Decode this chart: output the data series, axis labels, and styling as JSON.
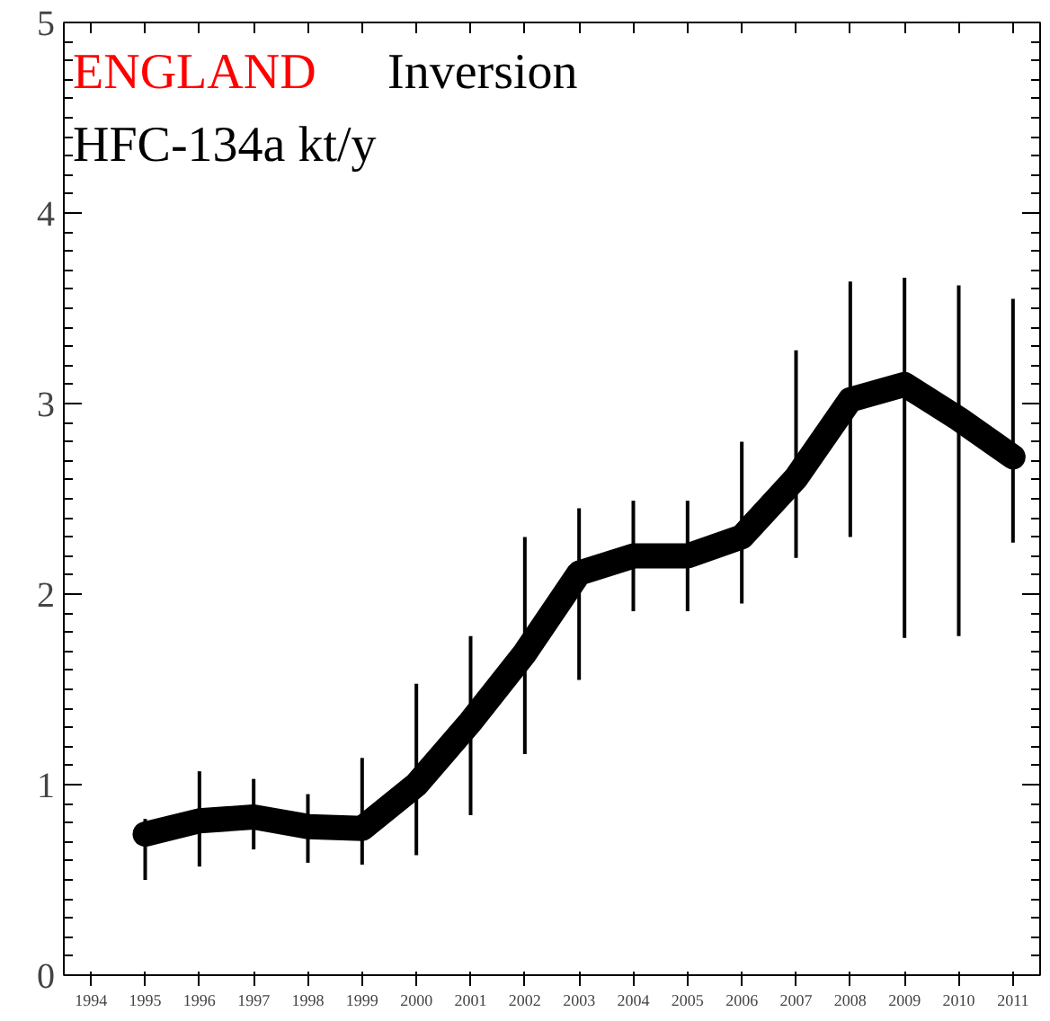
{
  "chart_data": {
    "type": "line",
    "title": "ENGLAND",
    "subtitle": "Inversion",
    "ylabel": "HFC-134a kt/y",
    "x": [
      1995,
      1996,
      1997,
      1998,
      1999,
      2000,
      2001,
      2002,
      2003,
      2004,
      2005,
      2006,
      2007,
      2008,
      2009,
      2010,
      2011
    ],
    "series": [
      {
        "color": "#000000",
        "values": [
          0.74,
          0.81,
          0.83,
          0.78,
          0.77,
          1.0,
          1.33,
          1.69,
          2.11,
          2.2,
          2.2,
          2.3,
          2.61,
          3.02,
          3.1,
          2.92,
          2.72
        ],
        "errors": [
          [
            0.5,
            0.82
          ],
          [
            0.57,
            1.07
          ],
          [
            0.66,
            1.03
          ],
          [
            0.59,
            0.95
          ],
          [
            0.58,
            1.14
          ],
          [
            0.63,
            1.53
          ],
          [
            0.84,
            1.78
          ],
          [
            1.16,
            2.3
          ],
          [
            1.55,
            2.45
          ],
          [
            1.91,
            2.49
          ],
          [
            1.91,
            2.49
          ],
          [
            1.95,
            2.8
          ],
          [
            2.19,
            3.28
          ],
          [
            2.3,
            3.64
          ],
          [
            1.77,
            3.66
          ],
          [
            1.78,
            3.62
          ],
          [
            2.27,
            3.55
          ]
        ]
      }
    ],
    "xlim": [
      1993.5,
      2011.5
    ],
    "xticks": [
      1994,
      1995,
      1996,
      1997,
      1998,
      1999,
      2000,
      2001,
      2002,
      2003,
      2004,
      2005,
      2006,
      2007,
      2008,
      2009,
      2010,
      2011
    ],
    "ylim": [
      0,
      5
    ],
    "yticks": [
      0,
      1,
      2,
      3,
      4,
      5
    ],
    "grid": false,
    "line_style": "solid"
  }
}
